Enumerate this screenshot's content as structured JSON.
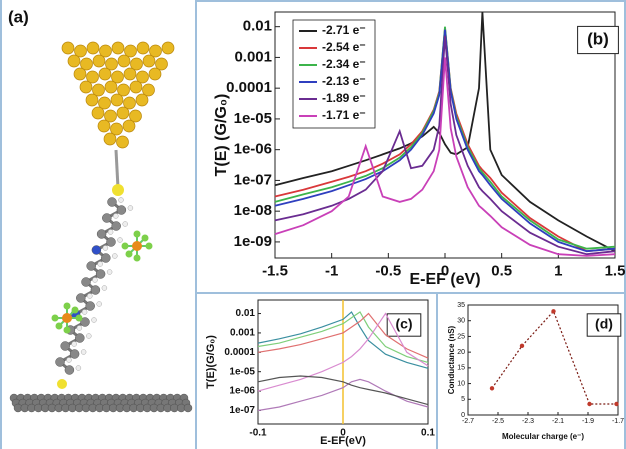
{
  "panel_a": {
    "label": "(a)"
  },
  "chart_data": [
    {
      "type": "line",
      "title": "(b)",
      "xlabel": "E-EF (eV)",
      "ylabel": "T(E) (G/G₀)",
      "log_y": true,
      "legend": "upper left",
      "x": [
        -1.5,
        -1.25,
        -1,
        -0.85,
        -0.7,
        -0.55,
        -0.4,
        -0.3,
        -0.2,
        -0.1,
        -0.05,
        0,
        0.05,
        0.1,
        0.2,
        0.3,
        0.33,
        0.4,
        0.5,
        0.75,
        1,
        1.25,
        1.5
      ],
      "xlim": [
        -1.5,
        1.5
      ],
      "xticks": [
        -1.5,
        -1,
        -0.5,
        0,
        0.5,
        1,
        1.5
      ],
      "ylim": [
        3e-10,
        0.03
      ],
      "yticks": [
        {
          "value": 1e-09,
          "label": "1e-09"
        },
        {
          "value": 1e-08,
          "label": "1e-08"
        },
        {
          "value": 1e-07,
          "label": "1e-07"
        },
        {
          "value": 1e-06,
          "label": "1e-06"
        },
        {
          "value": 1e-05,
          "label": "1e-05"
        },
        0.0001,
        0.001,
        0.01
      ],
      "series": [
        {
          "name": "-2.71 e⁻",
          "color": "#222222",
          "values": [
            7e-08,
            1.2e-07,
            2e-07,
            3e-07,
            4.5e-07,
            7e-07,
            1.1e-06,
            1.6e-06,
            2.7e-06,
            5.5e-06,
            3.5e-06,
            1.5e-06,
            8e-07,
            7e-07,
            1.2e-06,
            0.0001,
            0.03,
            1e-06,
            1.5e-07,
            2e-08,
            5e-09,
            1.5e-09,
            5e-10
          ]
        },
        {
          "name": "-2.54 e⁻",
          "color": "#d9383a",
          "values": [
            3e-08,
            5e-08,
            9e-08,
            1.3e-07,
            2e-07,
            3.5e-07,
            7e-07,
            1.5e-06,
            4e-06,
            2e-05,
            8e-05,
            0.009,
            0.0001,
            1.5e-05,
            1.5e-06,
            3e-07,
            2.2e-07,
            1.2e-07,
            4e-08,
            6e-09,
            1.5e-09,
            5e-10,
            6e-10
          ]
        },
        {
          "name": "-2.34 e⁻",
          "color": "#3cb44b",
          "values": [
            2e-08,
            3.5e-08,
            6e-08,
            9e-08,
            1.4e-07,
            2.5e-07,
            5.5e-07,
            1.2e-06,
            3.5e-06,
            1.8e-05,
            7e-05,
            0.01,
            9e-05,
            1.2e-05,
            1.2e-06,
            2.5e-07,
            1.8e-07,
            9e-08,
            3e-08,
            5e-09,
            1.2e-09,
            6e-10,
            7e-10
          ]
        },
        {
          "name": "-2.13 e⁻",
          "color": "#2f3fbf",
          "values": [
            1.5e-08,
            2.5e-08,
            4.5e-08,
            7e-08,
            1.1e-07,
            2e-07,
            4.5e-07,
            1e-06,
            3e-06,
            1.5e-05,
            6e-05,
            0.008,
            8e-05,
            1e-05,
            1e-06,
            2e-07,
            1.5e-07,
            7e-08,
            2.5e-08,
            4e-09,
            1e-09,
            5e-10,
            6e-10
          ]
        },
        {
          "name": "-1.89 e⁻",
          "color": "#6a2c91",
          "values": [
            5e-09,
            8e-09,
            1.5e-08,
            2.5e-08,
            5e-08,
            2e-07,
            4e-06,
            2.5e-07,
            3e-07,
            1e-06,
            6e-06,
            0.005,
            3e-05,
            3e-06,
            3e-07,
            6e-08,
            4.5e-08,
            2.5e-08,
            1e-08,
            2e-09,
            7e-10,
            4e-10,
            5e-10
          ]
        },
        {
          "name": "-1.71 e⁻",
          "color": "#c940b8",
          "values": [
            1.8e-09,
            3.5e-09,
            1e-08,
            3e-08,
            1.3e-06,
            3e-08,
            2e-08,
            2.5e-08,
            5e-08,
            2e-07,
            1e-06,
            0.001,
            5e-06,
            6e-07,
            6e-08,
            1.5e-08,
            1.2e-08,
            7e-09,
            3e-09,
            8e-10,
            4e-10,
            3.5e-10,
            4e-10
          ]
        }
      ]
    },
    {
      "type": "line",
      "title": "(c)",
      "xlabel": "E-EF(eV)",
      "ylabel": "T(E)(G/G₀)",
      "log_y": true,
      "vline": 0,
      "vline_color": "#f2c12e",
      "x": [
        -0.1,
        -0.075,
        -0.05,
        -0.025,
        0,
        0.01,
        0.02,
        0.03,
        0.05,
        0.075,
        0.1
      ],
      "xlim": [
        -0.1,
        0.1
      ],
      "xticks": [
        -0.1,
        0,
        0.1
      ],
      "ylim": [
        2e-08,
        0.05
      ],
      "yticks": [
        {
          "value": 1e-07,
          "label": "1e-07"
        },
        {
          "value": 1e-06,
          "label": "1e-06"
        },
        {
          "value": 1e-05,
          "label": "1e-05"
        },
        0.0001,
        0.001,
        0.01
      ],
      "series": [
        {
          "color": "#3a8fa0",
          "values": [
            0.0003,
            0.0005,
            0.0009,
            0.002,
            0.005,
            0.012,
            0.002,
            0.0004,
            8e-05,
            3e-05,
            1.5e-05
          ]
        },
        {
          "color": "#7fcf7a",
          "values": [
            0.0002,
            0.0003,
            0.0006,
            0.0012,
            0.003,
            0.006,
            0.012,
            0.002,
            0.0002,
            6e-05,
            3e-05
          ]
        },
        {
          "color": "#e07070",
          "values": [
            0.0001,
            0.00015,
            0.00025,
            0.0005,
            0.001,
            0.002,
            0.004,
            0.01,
            0.0008,
            0.00015,
            5e-05
          ]
        },
        {
          "color": "#d98bd0",
          "values": [
            1e-06,
            2e-06,
            4e-06,
            1e-05,
            3e-05,
            6e-05,
            0.00015,
            0.0005,
            0.01,
            0.0001,
            2e-05
          ]
        },
        {
          "color": "#b07ab8",
          "values": [
            1e-07,
            1.5e-07,
            3e-07,
            6e-07,
            1.5e-06,
            3e-06,
            4e-06,
            3e-06,
            1e-06,
            3e-07,
            1.5e-07
          ]
        },
        {
          "color": "#555555",
          "values": [
            3e-06,
            5e-06,
            6e-06,
            5e-06,
            3e-06,
            2e-06,
            1.5e-06,
            1.2e-06,
            8e-07,
            4e-07,
            2e-07
          ]
        }
      ]
    },
    {
      "type": "scatter-line",
      "title": "(d)",
      "xlabel": "Molecular charge (e⁻)",
      "ylabel": "Conductance (nS)",
      "color": "#c0392b",
      "x": [
        -2.54,
        -2.34,
        -2.13,
        -1.89,
        -1.71
      ],
      "values": [
        8.5,
        22,
        33,
        3.5,
        3.5
      ],
      "xlim": [
        -2.7,
        -1.7
      ],
      "xticks": [
        -2.7,
        -2.5,
        -2.3,
        -2.1,
        -1.9,
        -1.7
      ],
      "ylim": [
        0,
        35
      ],
      "yticks": [
        0,
        5,
        10,
        15,
        20,
        25,
        30,
        35
      ]
    }
  ]
}
